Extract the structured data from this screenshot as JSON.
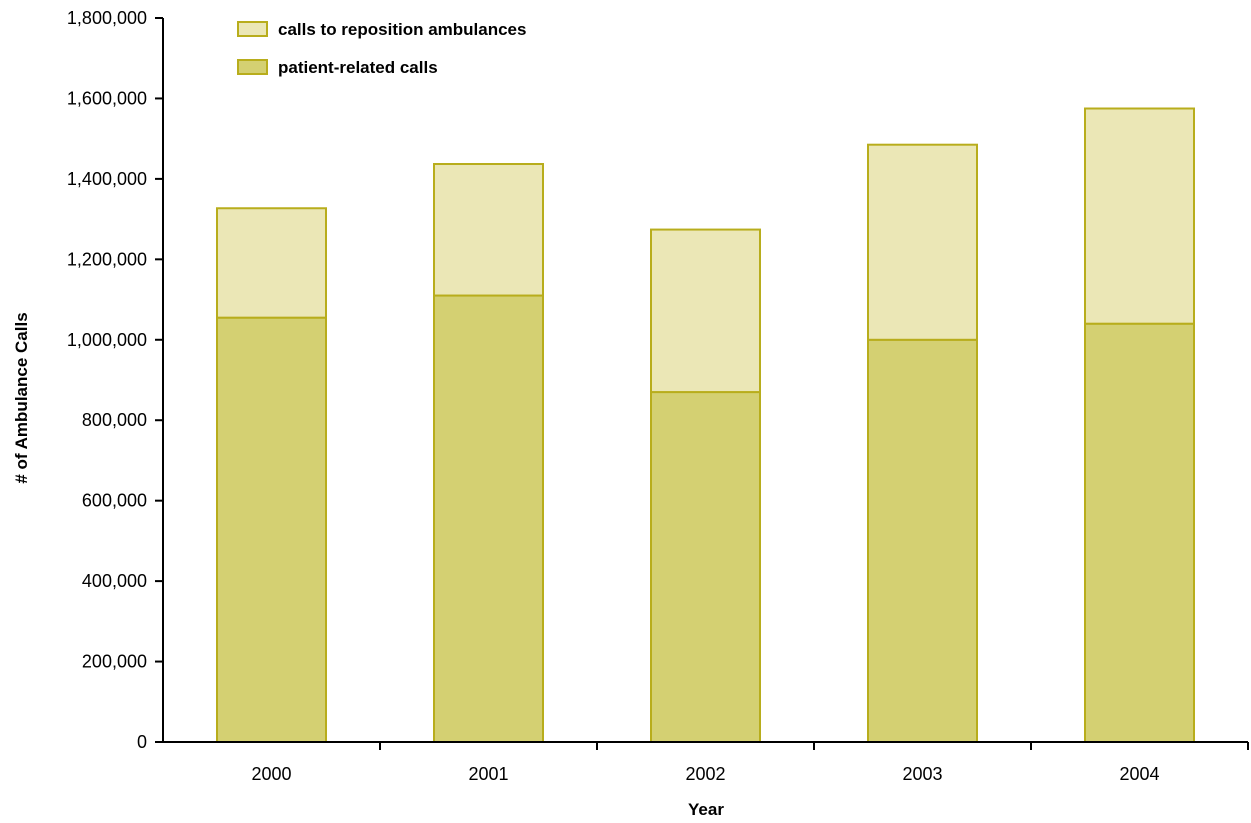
{
  "chart_data": {
    "type": "bar",
    "stacked": true,
    "categories": [
      "2000",
      "2001",
      "2002",
      "2003",
      "2004"
    ],
    "series": [
      {
        "name": "patient-related calls",
        "values": [
          1055000,
          1110000,
          870000,
          1000000,
          1040000
        ],
        "color": "#d4d072",
        "stroke": "#b8ad1c"
      },
      {
        "name": "calls to reposition ambulances",
        "values": [
          272000,
          327000,
          404000,
          485000,
          535000
        ],
        "color": "#ebe7b6",
        "stroke": "#b8ad1c"
      }
    ],
    "legend_order": [
      "calls to reposition ambulances",
      "patient-related calls"
    ],
    "legend_position": "top-left",
    "xlabel": "Year",
    "ylabel": "# of Ambulance Calls",
    "ylim": [
      0,
      1800000
    ],
    "yticks": [
      0,
      200000,
      400000,
      600000,
      800000,
      1000000,
      1200000,
      1400000,
      1600000,
      1800000
    ],
    "ytick_labels": [
      "0",
      "200,000",
      "400,000",
      "600,000",
      "800,000",
      "1,000,000",
      "1,200,000",
      "1,400,000",
      "1,600,000",
      "1,800,000"
    ],
    "grid": false
  }
}
